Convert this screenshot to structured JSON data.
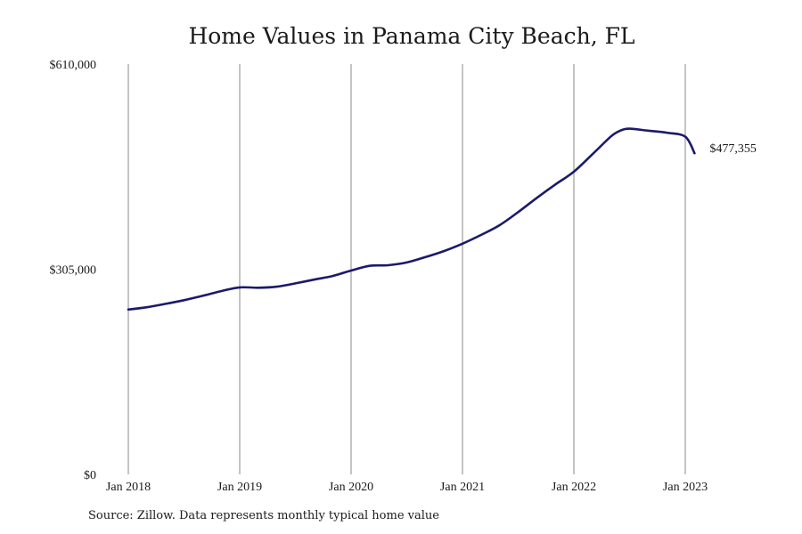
{
  "chart_data": {
    "type": "line",
    "title": "Home Values in Panama City Beach, FL",
    "xlabel": "",
    "ylabel": "",
    "x_ticks": [
      "Jan 2018",
      "Jan 2019",
      "Jan 2020",
      "Jan 2021",
      "Jan 2022",
      "Jan 2023"
    ],
    "y_ticks": [
      "$0",
      "$305,000",
      "$610,000"
    ],
    "ylim": [
      0,
      610000
    ],
    "xlim": [
      "2018-01",
      "2023-01"
    ],
    "grid": "vertical",
    "line_color": "#1b1a6b",
    "end_label": "$477,355",
    "series": [
      {
        "x": [
          "2018-01",
          "2018-03",
          "2018-05",
          "2018-07",
          "2018-09",
          "2018-11",
          "2019-01",
          "2019-03",
          "2019-05",
          "2019-07",
          "2019-09",
          "2019-11",
          "2020-01",
          "2020-03",
          "2020-05",
          "2020-07",
          "2020-09",
          "2020-11",
          "2021-01",
          "2021-03",
          "2021-05",
          "2021-07",
          "2021-09",
          "2021-11",
          "2022-01",
          "2022-03",
          "2022-05",
          "2022-06",
          "2022-07",
          "2022-09",
          "2022-11",
          "2023-01",
          "2023-02"
        ],
        "values": [
          245000,
          248500,
          253500,
          259000,
          265500,
          272500,
          278000,
          277500,
          279000,
          284000,
          289500,
          295000,
          303000,
          310000,
          311000,
          315000,
          323000,
          332000,
          343000,
          356000,
          370500,
          390000,
          411000,
          431000,
          450000,
          476000,
          502500,
          511000,
          514000,
          511000,
          508000,
          502000,
          477355
        ]
      }
    ]
  },
  "source_note": "Source: Zillow. Data represents monthly typical home value"
}
